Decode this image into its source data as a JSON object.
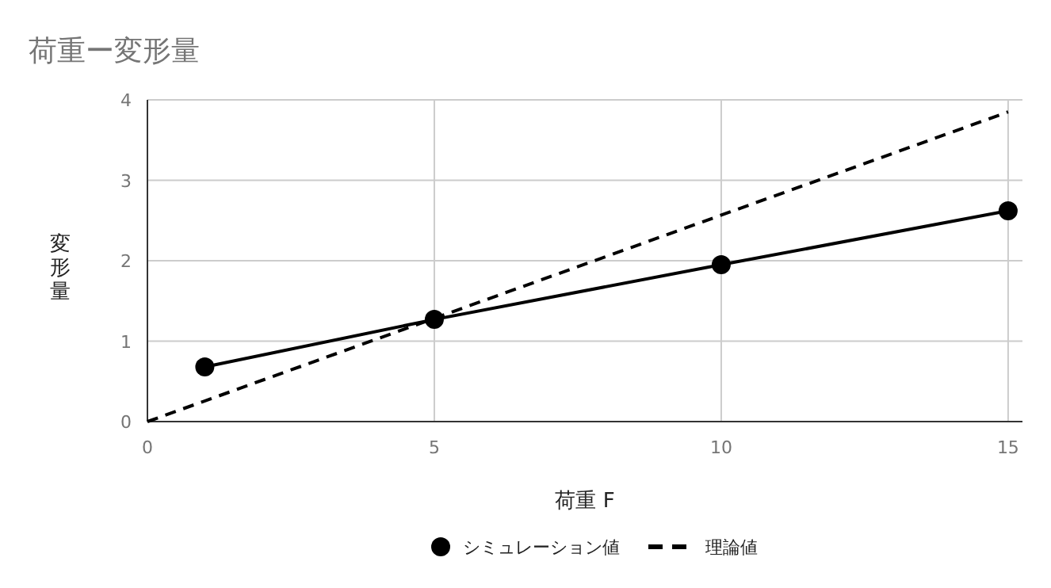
{
  "chart_data": {
    "type": "line",
    "title": "荷重ー変形量",
    "xlabel": "荷重 F",
    "ylabel": "変形量",
    "xlim": [
      0,
      15.25
    ],
    "xticks": [
      0,
      5,
      10,
      15
    ],
    "ylim": [
      0,
      4
    ],
    "yticks": [
      0,
      1,
      2,
      3,
      4
    ],
    "grid": true,
    "legend": "bottom",
    "series": [
      {
        "name": "シミュレーション値",
        "color": "#000000",
        "x": [
          1,
          5,
          10,
          15
        ],
        "values": [
          0.68,
          1.27,
          1.95,
          2.62
        ],
        "marker": "circle",
        "line_style": "solid"
      },
      {
        "name": "理論値",
        "color": "#000000",
        "x": [
          0,
          15
        ],
        "values": [
          0,
          3.85
        ],
        "marker": "none",
        "line_style": "dashed"
      }
    ]
  }
}
